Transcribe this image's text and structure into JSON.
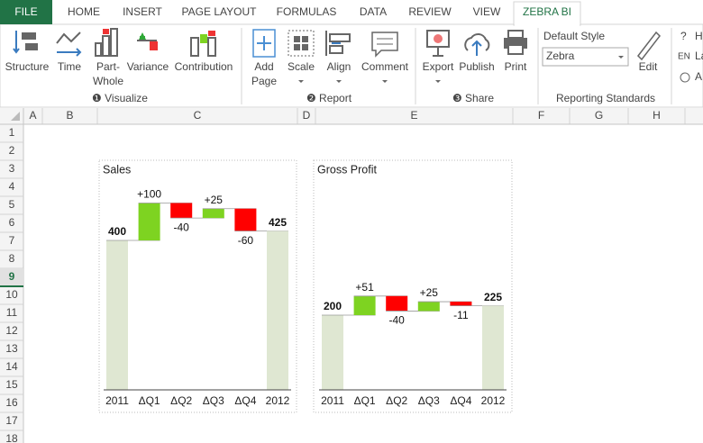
{
  "tabs": [
    "FILE",
    "HOME",
    "INSERT",
    "PAGE LAYOUT",
    "FORMULAS",
    "DATA",
    "REVIEW",
    "VIEW",
    "ZEBRA BI"
  ],
  "ribbon": {
    "buttons": [
      {
        "lines": [
          "Structure"
        ]
      },
      {
        "lines": [
          "Time"
        ]
      },
      {
        "lines": [
          "Part-",
          "Whole"
        ]
      },
      {
        "lines": [
          "Variance"
        ]
      },
      {
        "lines": [
          "Contribution"
        ]
      },
      {
        "lines": [
          "Add",
          "Page"
        ]
      },
      {
        "lines": [
          "Scale"
        ]
      },
      {
        "lines": [
          "Align"
        ]
      },
      {
        "lines": [
          "Comment"
        ]
      },
      {
        "lines": [
          "Export"
        ]
      },
      {
        "lines": [
          "Publish"
        ]
      },
      {
        "lines": [
          "Print"
        ]
      }
    ],
    "groups": [
      "❶ Visualize",
      "❷ Report",
      "❸ Share",
      "Reporting Standards"
    ],
    "style_label": "Default Style",
    "style_value": "Zebra",
    "edit": "Edit",
    "side": [
      "H",
      "La",
      "A"
    ],
    "side_prefix": [
      "?",
      "EN"
    ]
  },
  "columns": [
    "A",
    "B",
    "C",
    "D",
    "E",
    "F",
    "G",
    "H"
  ],
  "rows": [
    1,
    2,
    3,
    4,
    5,
    6,
    7,
    8,
    9,
    10,
    11,
    12,
    13,
    14,
    15,
    16,
    17,
    18
  ],
  "chart_data": [
    {
      "type": "waterfall",
      "title": "Sales",
      "categories": [
        "2011",
        "ΔQ1",
        "ΔQ2",
        "ΔQ3",
        "ΔQ4",
        "2012"
      ],
      "values": [
        400,
        100,
        -40,
        25,
        -60,
        425
      ],
      "value_labels": [
        "400",
        "+100",
        "-40",
        "+25",
        "-60",
        "425"
      ],
      "colors": {
        "total": "#dfe7d2",
        "increase": "#7ed321",
        "decrease": "#ff0000"
      }
    },
    {
      "type": "waterfall",
      "title": "Gross Profit",
      "categories": [
        "2011",
        "ΔQ1",
        "ΔQ2",
        "ΔQ3",
        "ΔQ4",
        "2012"
      ],
      "values": [
        200,
        51,
        -40,
        25,
        -11,
        225
      ],
      "value_labels": [
        "200",
        "+51",
        "-40",
        "+25",
        "-11",
        "225"
      ],
      "colors": {
        "total": "#dfe7d2",
        "increase": "#7ed321",
        "decrease": "#ff0000"
      }
    }
  ]
}
